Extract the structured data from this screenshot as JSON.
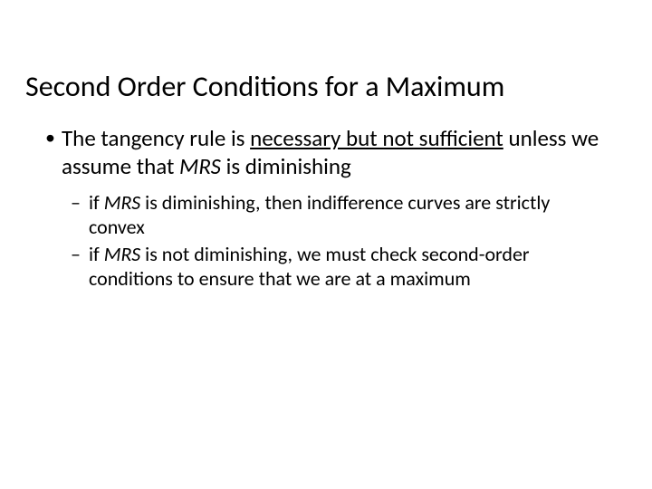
{
  "slide": {
    "title": "Second Order Conditions for a Maximum",
    "bullet1_pre": "The tangency rule is ",
    "bullet1_underlined": "necessary but not sufficient",
    "bullet1_mid": " unless we assume that ",
    "bullet1_mrs": "MRS",
    "bullet1_post": " is diminishing",
    "sub1_pre": "if ",
    "sub1_mrs": "MRS",
    "sub1_post": " is diminishing, then indifference curves are strictly convex",
    "sub2_pre": "if ",
    "sub2_mrs": "MRS",
    "sub2_post": " is not diminishing, we must check second-order conditions to ensure that we are at a maximum",
    "title_fontsize": 32,
    "body_fontsize_l1": 25,
    "body_fontsize_l2": 22,
    "text_color": "#000000",
    "background_color": "#ffffff"
  }
}
